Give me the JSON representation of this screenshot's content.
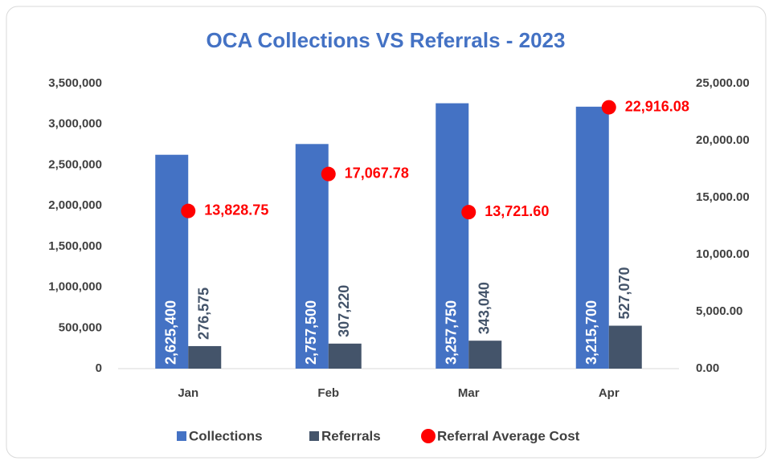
{
  "chart_data": {
    "type": "bar",
    "title": "OCA Collections VS Referrals - 2023",
    "categories": [
      "Jan",
      "Feb",
      "Mar",
      "Apr"
    ],
    "series": [
      {
        "name": "Collections",
        "color": "#4472c4",
        "values": [
          2625400,
          2757500,
          3257750,
          3215700
        ],
        "value_labels": [
          "2,625,400",
          "2,757,500",
          "3,257,750",
          "3,215,700"
        ]
      },
      {
        "name": "Referrals",
        "color": "#44546a",
        "values": [
          276575,
          307220,
          343040,
          527070
        ],
        "value_labels": [
          "276,575",
          "307,220",
          "343,040",
          "527,070"
        ]
      },
      {
        "name": "Referral Average Cost",
        "color": "#ff0000",
        "type": "scatter",
        "axis": "y2",
        "values": [
          13828.75,
          17067.78,
          13721.6,
          22916.08
        ],
        "value_labels": [
          "13,828.75",
          "17,067.78",
          "13,721.60",
          "22,916.08"
        ]
      }
    ],
    "ylim": [
      0,
      3500000
    ],
    "yticks": [
      0,
      {
        "value": 500000,
        "label": "500,000"
      },
      {
        "value": 1000000,
        "label": "1,000,000"
      },
      {
        "value": 1500000,
        "label": "1,500,000"
      },
      {
        "value": 2000000,
        "label": "2,000,000"
      },
      {
        "value": 2500000,
        "label": "2,500,000"
      },
      {
        "value": 3000000,
        "label": "3,000,000"
      },
      {
        "value": 3500000,
        "label": "3,500,000"
      }
    ],
    "y2lim": [
      0,
      25000
    ],
    "y2ticks": [
      {
        "value": 0,
        "label": "0.00"
      },
      {
        "value": 5000,
        "label": "5,000.00"
      },
      {
        "value": 10000,
        "label": "10,000.00"
      },
      {
        "value": 15000,
        "label": "15,000.00"
      },
      {
        "value": 20000,
        "label": "20,000.00"
      },
      {
        "value": 25000,
        "label": "25,000.00"
      }
    ],
    "legend": "bottom"
  }
}
